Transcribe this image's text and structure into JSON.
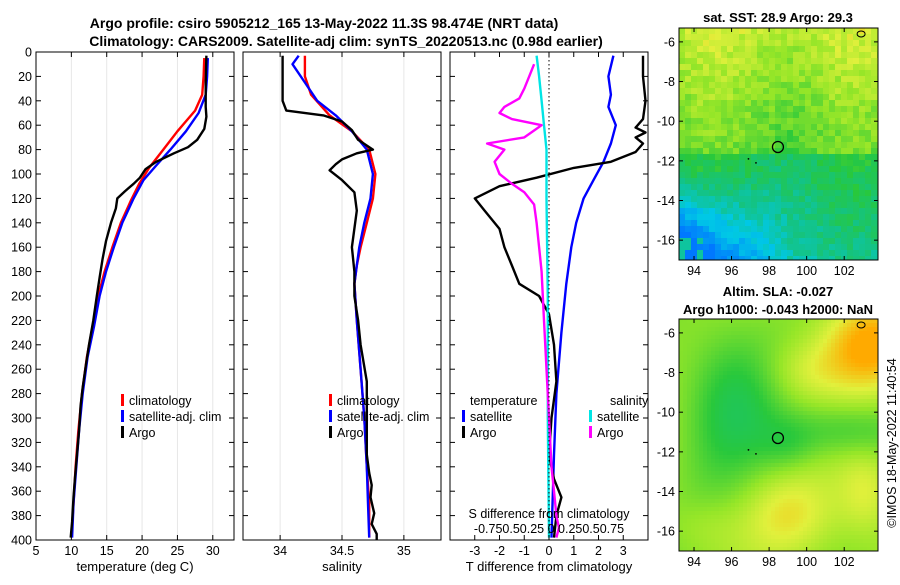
{
  "header": {
    "line1": "Argo profile: csiro 5905212_165 13-May-2022 11.3S 98.474E (NRT data)",
    "line2": "Climatology: CARS2009. Satellite-adj clim: synTS_20220513.nc (0.98d earlier)"
  },
  "watermark": "©IMOS 18-May-2022 11:40:54",
  "colors": {
    "climatology": "#ff0000",
    "satellite": "#0000ff",
    "argo": "#000000",
    "sat_s": "#00e5e5",
    "argo_s": "#ff00ff",
    "background": "#ffffff"
  },
  "chart_data": [
    {
      "type": "line",
      "id": "temperature-profile",
      "xlabel": "temperature (deg C)",
      "xlim": [
        5,
        33
      ],
      "ylim": [
        0,
        400
      ],
      "xticks": [
        "5",
        "10",
        "15",
        "20",
        "25",
        "30"
      ],
      "yticks": [
        "0",
        "20",
        "40",
        "60",
        "80",
        "100",
        "120",
        "140",
        "160",
        "180",
        "200",
        "220",
        "240",
        "260",
        "280",
        "300",
        "320",
        "340",
        "360",
        "380",
        "400"
      ],
      "legend": [
        "climatology",
        "satellite-adj. clim",
        "Argo"
      ],
      "series": [
        {
          "name": "climatology",
          "color": "#ff0000",
          "points": [
            [
              28.8,
              5
            ],
            [
              28.7,
              20
            ],
            [
              28.5,
              35
            ],
            [
              27.5,
              48
            ],
            [
              25,
              65
            ],
            [
              23,
              80
            ],
            [
              21,
              95
            ],
            [
              19.6,
              108
            ],
            [
              18.4,
              122
            ],
            [
              17,
              140
            ],
            [
              15.8,
              160
            ],
            [
              14.7,
              180
            ],
            [
              13.8,
              200
            ],
            [
              13,
              225
            ],
            [
              12.2,
              250
            ],
            [
              11.5,
              280
            ],
            [
              11,
              310
            ],
            [
              10.6,
              340
            ],
            [
              10.3,
              370
            ],
            [
              10,
              398
            ]
          ]
        },
        {
          "name": "satellite-adj. clim",
          "color": "#0000ff",
          "points": [
            [
              29.3,
              5
            ],
            [
              29.2,
              20
            ],
            [
              29,
              35
            ],
            [
              28,
              50
            ],
            [
              26.2,
              65
            ],
            [
              24,
              80
            ],
            [
              22,
              93
            ],
            [
              20.2,
              105
            ],
            [
              18.8,
              120
            ],
            [
              17.2,
              140
            ],
            [
              16,
              160
            ],
            [
              14.9,
              180
            ],
            [
              14,
              200
            ],
            [
              13.2,
              225
            ],
            [
              12.3,
              250
            ],
            [
              11.6,
              280
            ],
            [
              11.1,
              310
            ],
            [
              10.7,
              340
            ],
            [
              10.3,
              370
            ],
            [
              10.1,
              398
            ]
          ]
        },
        {
          "name": "Argo",
          "color": "#000000",
          "points": [
            [
              29.1,
              3
            ],
            [
              29,
              25
            ],
            [
              29,
              45
            ],
            [
              29.1,
              53
            ],
            [
              28.8,
              63
            ],
            [
              27.8,
              72
            ],
            [
              26.5,
              78
            ],
            [
              24.5,
              83
            ],
            [
              22,
              90
            ],
            [
              20.5,
              96
            ],
            [
              19.7,
              103
            ],
            [
              18.8,
              108
            ],
            [
              17.6,
              114
            ],
            [
              16.5,
              120
            ],
            [
              16.3,
              128
            ],
            [
              15.6,
              140
            ],
            [
              14.9,
              155
            ],
            [
              14.4,
              170
            ],
            [
              14,
              185
            ],
            [
              13.6,
              200
            ],
            [
              13.1,
              220
            ],
            [
              12.5,
              240
            ],
            [
              12.1,
              255
            ],
            [
              11.6,
              275
            ],
            [
              11.3,
              290
            ],
            [
              11.1,
              310
            ],
            [
              10.8,
              330
            ],
            [
              10.5,
              350
            ],
            [
              10.3,
              365
            ],
            [
              10.1,
              385
            ],
            [
              9.9,
              398
            ]
          ]
        }
      ]
    },
    {
      "type": "line",
      "id": "salinity-profile",
      "xlabel": "salinity",
      "xlim": [
        33.7,
        35.3
      ],
      "ylim": [
        0,
        400
      ],
      "xticks": [
        "34",
        "34.5",
        "35"
      ],
      "legend": [
        "climatology",
        "satellite-adj. clim",
        "Argo"
      ],
      "series": [
        {
          "name": "climatology",
          "color": "#ff0000",
          "points": [
            [
              34.2,
              3
            ],
            [
              34.2,
              20
            ],
            [
              34.25,
              35
            ],
            [
              34.4,
              52
            ],
            [
              34.58,
              65
            ],
            [
              34.72,
              80
            ],
            [
              34.77,
              100
            ],
            [
              34.75,
              120
            ],
            [
              34.7,
              140
            ],
            [
              34.65,
              160
            ],
            [
              34.62,
              175
            ],
            [
              34.6,
              190
            ],
            [
              34.62,
              220
            ],
            [
              34.65,
              260
            ],
            [
              34.68,
              300
            ],
            [
              34.7,
              340
            ],
            [
              34.72,
              370
            ],
            [
              34.72,
              398
            ]
          ]
        },
        {
          "name": "satellite-adj. clim",
          "color": "#0000ff",
          "points": [
            [
              34.15,
              3
            ],
            [
              34.1,
              10
            ],
            [
              34.2,
              25
            ],
            [
              34.3,
              40
            ],
            [
              34.45,
              52
            ],
            [
              34.58,
              65
            ],
            [
              34.7,
              80
            ],
            [
              34.75,
              100
            ],
            [
              34.73,
              120
            ],
            [
              34.68,
              140
            ],
            [
              34.64,
              160
            ],
            [
              34.62,
              175
            ],
            [
              34.6,
              190
            ],
            [
              34.62,
              220
            ],
            [
              34.65,
              260
            ],
            [
              34.68,
              300
            ],
            [
              34.7,
              340
            ],
            [
              34.71,
              370
            ],
            [
              34.72,
              398
            ]
          ]
        },
        {
          "name": "Argo",
          "color": "#000000",
          "points": [
            [
              34.02,
              3
            ],
            [
              34.02,
              40
            ],
            [
              34.05,
              48
            ],
            [
              34.35,
              52
            ],
            [
              34.5,
              57
            ],
            [
              34.58,
              64
            ],
            [
              34.63,
              72
            ],
            [
              34.75,
              80
            ],
            [
              34.62,
              83
            ],
            [
              34.5,
              88
            ],
            [
              34.45,
              92
            ],
            [
              34.4,
              97
            ],
            [
              34.5,
              105
            ],
            [
              34.6,
              115
            ],
            [
              34.62,
              130
            ],
            [
              34.58,
              160
            ],
            [
              34.6,
              180
            ],
            [
              34.6,
              200
            ],
            [
              34.63,
              220
            ],
            [
              34.65,
              240
            ],
            [
              34.7,
              270
            ],
            [
              34.7,
              300
            ],
            [
              34.7,
              330
            ],
            [
              34.72,
              345
            ],
            [
              34.74,
              355
            ],
            [
              34.73,
              365
            ],
            [
              34.76,
              378
            ],
            [
              34.74,
              387
            ],
            [
              34.78,
              395
            ],
            [
              34.78,
              400
            ]
          ]
        }
      ]
    },
    {
      "type": "line",
      "id": "difference-profile",
      "xlabel": "T difference from climatology",
      "xlabel_top": "S difference from climatology",
      "xlim": [
        -4,
        4
      ],
      "ylim": [
        0,
        400
      ],
      "xticks": [
        "-3",
        "-2",
        "-1",
        "0",
        "1",
        "2",
        "3"
      ],
      "s_ticks_text": "-0.750.50.25 0 0.250.50.75",
      "legend_titles": [
        "temperature",
        "salinity"
      ],
      "legend": [
        "satellite",
        "Argo",
        "satellite",
        "Argo"
      ],
      "series": [
        {
          "name": "temperature satellite",
          "color": "#0000ff",
          "points": [
            [
              2.6,
              3
            ],
            [
              2.4,
              20
            ],
            [
              2.5,
              35
            ],
            [
              2.4,
              45
            ],
            [
              2.7,
              60
            ],
            [
              2.5,
              75
            ],
            [
              2.2,
              90
            ],
            [
              1.8,
              105
            ],
            [
              1.4,
              120
            ],
            [
              1.1,
              140
            ],
            [
              0.9,
              160
            ],
            [
              0.7,
              190
            ],
            [
              0.5,
              230
            ],
            [
              0.3,
              280
            ],
            [
              0.2,
              330
            ],
            [
              0.1,
              398
            ]
          ]
        },
        {
          "name": "temperature Argo",
          "color": "#000000",
          "points": [
            [
              3.8,
              3
            ],
            [
              3.8,
              20
            ],
            [
              3.9,
              40
            ],
            [
              3.8,
              55
            ],
            [
              3.5,
              62
            ],
            [
              3.9,
              66
            ],
            [
              3.5,
              70
            ],
            [
              3.8,
              75
            ],
            [
              3.5,
              82
            ],
            [
              2.5,
              90
            ],
            [
              1,
              95
            ],
            [
              -0.5,
              103
            ],
            [
              -2,
              110
            ],
            [
              -3,
              120
            ],
            [
              -2.6,
              130
            ],
            [
              -2,
              145
            ],
            [
              -1.8,
              160
            ],
            [
              -1.5,
              175
            ],
            [
              -1.2,
              190
            ],
            [
              -0.4,
              200
            ],
            [
              0,
              215
            ],
            [
              0.2,
              240
            ],
            [
              0.3,
              270
            ],
            [
              0.1,
              300
            ],
            [
              0,
              330
            ],
            [
              0.2,
              350
            ],
            [
              0.5,
              365
            ],
            [
              0.3,
              380
            ],
            [
              0.2,
              398
            ]
          ]
        },
        {
          "name": "salinity satellite",
          "color": "#00e5e5",
          "points": [
            [
              -0.5,
              3
            ],
            [
              -0.4,
              20
            ],
            [
              -0.3,
              40
            ],
            [
              -0.2,
              60
            ],
            [
              -0.1,
              80
            ],
            [
              -0.1,
              120
            ],
            [
              -0.05,
              200
            ],
            [
              -0.05,
              300
            ],
            [
              0,
              398
            ]
          ]
        },
        {
          "name": "salinity Argo",
          "color": "#ff00ff",
          "points": [
            [
              -0.6,
              10
            ],
            [
              -0.8,
              20
            ],
            [
              -1,
              30
            ],
            [
              -1.2,
              38
            ],
            [
              -1.8,
              45
            ],
            [
              -2,
              50
            ],
            [
              -1.5,
              55
            ],
            [
              -0.3,
              60
            ],
            [
              -1,
              70
            ],
            [
              -2.5,
              75
            ],
            [
              -1.8,
              80
            ],
            [
              -2.2,
              90
            ],
            [
              -2,
              100
            ],
            [
              -1.5,
              108
            ],
            [
              -1,
              115
            ],
            [
              -0.6,
              125
            ],
            [
              -0.5,
              140
            ],
            [
              -0.4,
              160
            ],
            [
              -0.3,
              180
            ],
            [
              -0.2,
              220
            ],
            [
              -0.1,
              260
            ],
            [
              0,
              300
            ],
            [
              0.1,
              340
            ],
            [
              0.2,
              360
            ],
            [
              0.3,
              380
            ],
            [
              0.4,
              390
            ],
            [
              0.3,
              398
            ]
          ]
        }
      ]
    },
    {
      "type": "heatmap",
      "id": "sst-map",
      "title": "sat. SST: 28.9 Argo: 29.3",
      "xlim": [
        93.2,
        103.8
      ],
      "ylim": [
        -17,
        -5.3
      ],
      "xticks": [
        "94",
        "96",
        "98",
        "100",
        "102"
      ],
      "yticks": [
        "-6",
        "-8",
        "-10",
        "-12",
        "-14",
        "-16"
      ],
      "marker": {
        "lon": 98.47,
        "lat": -11.3
      }
    },
    {
      "type": "heatmap",
      "id": "sla-map",
      "title": "Altim. SLA: -0.027",
      "subtitle": "Argo h1000: -0.043 h2000: NaN",
      "xlim": [
        93.2,
        103.8
      ],
      "ylim": [
        -17,
        -5.3
      ],
      "xticks": [
        "94",
        "96",
        "98",
        "100",
        "102"
      ],
      "yticks": [
        "-6",
        "-8",
        "-10",
        "-12",
        "-14",
        "-16"
      ],
      "marker": {
        "lon": 98.47,
        "lat": -11.3
      }
    }
  ]
}
